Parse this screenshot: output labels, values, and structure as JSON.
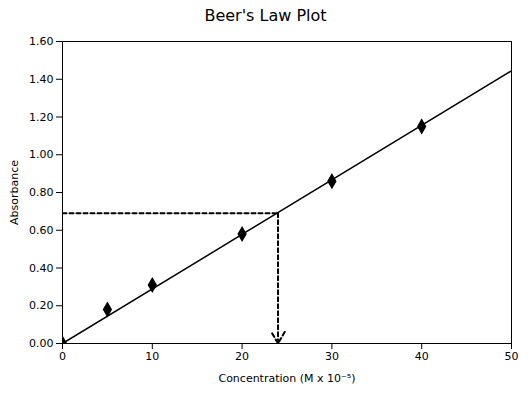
{
  "chart_data": {
    "type": "scatter",
    "title": "Beer's Law Plot",
    "xlabel": "Concentration (M x 10⁻⁵)",
    "ylabel": "Absorbance",
    "xlim": [
      0,
      50
    ],
    "ylim": [
      0,
      1.6
    ],
    "xticks": [
      0,
      10,
      20,
      30,
      40,
      50
    ],
    "yticks": [
      {
        "value": 0,
        "label": "0.00"
      },
      {
        "value": 0.2,
        "label": "0.20"
      },
      {
        "value": 0.4,
        "label": "0.40"
      },
      {
        "value": 0.6,
        "label": "0.60"
      },
      {
        "value": 0.8,
        "label": "0.80"
      },
      {
        "value": 1.0,
        "label": "1.00"
      },
      {
        "value": 1.2,
        "label": "1.20"
      },
      {
        "value": 1.4,
        "label": "1.40"
      },
      {
        "value": 1.6,
        "label": "1.60"
      }
    ],
    "grid": false,
    "series": [
      {
        "type": "line",
        "color": "black",
        "x": [
          0,
          50
        ],
        "values": [
          0,
          1.444628099173554
        ]
      },
      {
        "type": "scatter",
        "color": "black",
        "marker": "diamond",
        "x": [
          0,
          5,
          10,
          20,
          30,
          40
        ],
        "values": [
          0.0,
          0.18,
          0.31,
          0.58,
          0.86,
          1.15
        ]
      },
      {
        "type": "line",
        "color": "black",
        "line_style": "dashed",
        "x": [
          0,
          24
        ],
        "values": [
          0.69,
          0.69
        ]
      },
      {
        "type": "line",
        "color": "black",
        "line_style": "dashed",
        "marker": "arrow",
        "x": [
          24,
          24
        ],
        "values": [
          0.69,
          0
        ]
      }
    ]
  }
}
